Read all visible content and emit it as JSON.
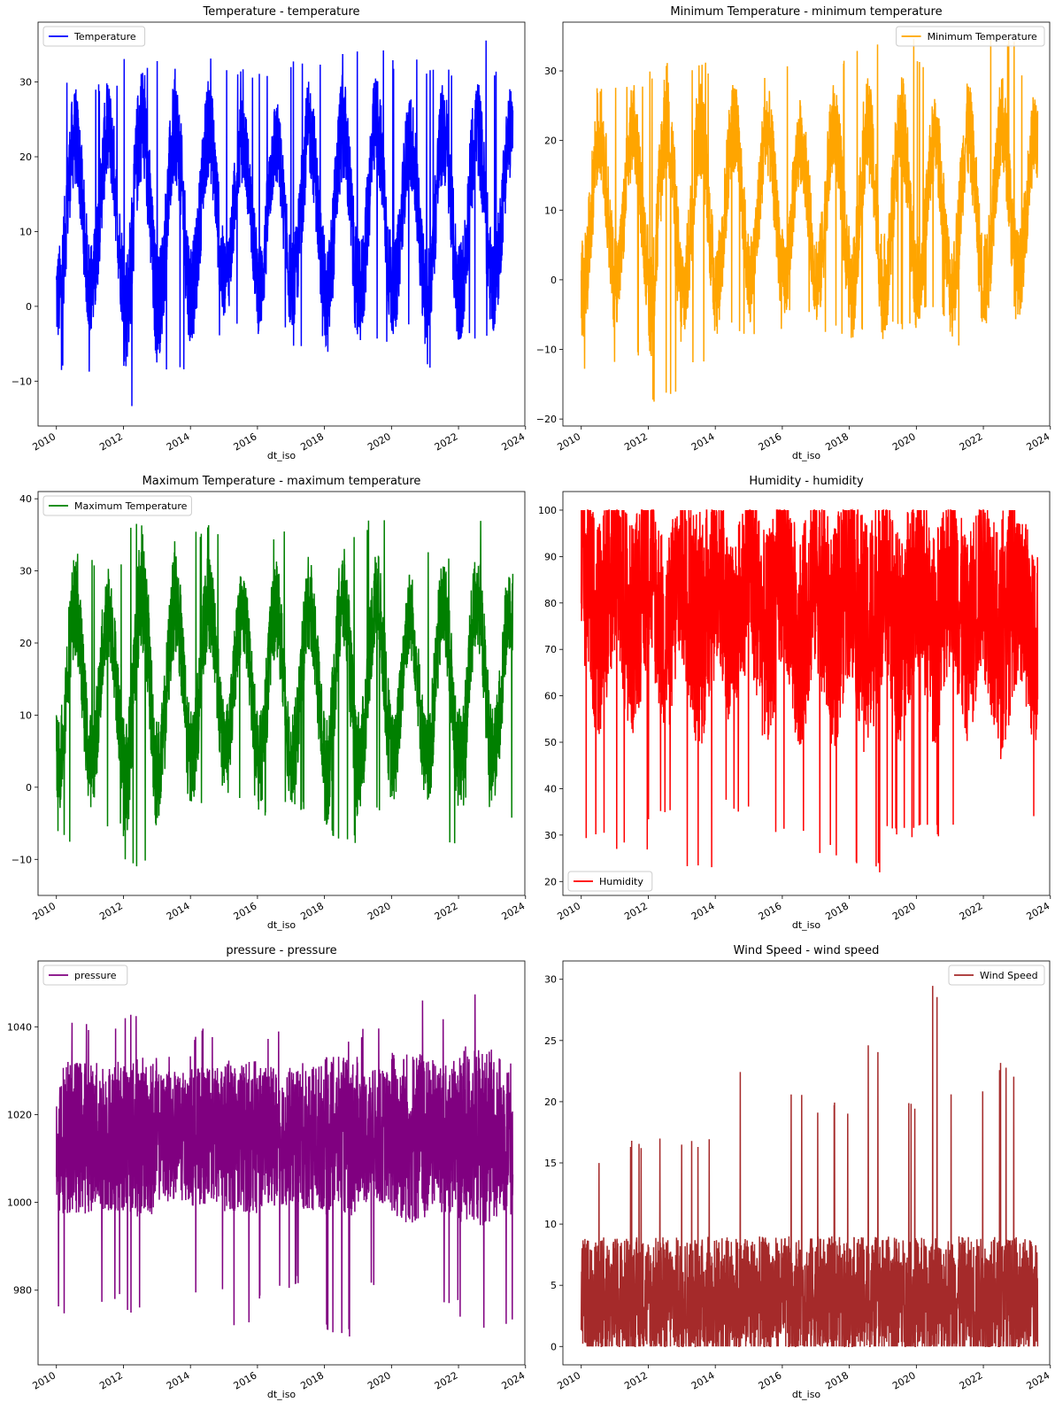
{
  "chart_data": [
    {
      "type": "line",
      "title": "Temperature - temperature",
      "xlabel": "dt_iso",
      "ylabel": "",
      "series": [
        {
          "name": "Temperature",
          "color": "#0000ff"
        }
      ],
      "x_range": [
        "2009-06-14",
        "2023-12-24"
      ],
      "xticks": [
        "2010",
        "2012",
        "2014",
        "2016",
        "2018",
        "2020",
        "2022",
        "2024"
      ],
      "ylim": [
        -16,
        38
      ],
      "yticks": [
        -10,
        0,
        10,
        20,
        30
      ],
      "envelope": {
        "min": -13.6,
        "max": 36.2
      },
      "yearly": {
        "2010": {
          "lo": -9,
          "mid": 12,
          "hi": 30.4
        },
        "2011": {
          "lo": -7.8,
          "mid": 13,
          "hi": 30.4
        },
        "2012": {
          "lo": -13.6,
          "mid": 12,
          "hi": 33.1
        },
        "2013": {
          "lo": -8.8,
          "mid": 12,
          "hi": 33.3
        },
        "2014": {
          "lo": -5.3,
          "mid": 13,
          "hi": 34.3
        },
        "2015": {
          "lo": -2.4,
          "mid": 13,
          "hi": 31.8
        },
        "2016": {
          "lo": -3.7,
          "mid": 12,
          "hi": 32.4
        },
        "2017": {
          "lo": -5.5,
          "mid": 13,
          "hi": 33.6
        },
        "2018": {
          "lo": -8.3,
          "mid": 12,
          "hi": 35.2
        },
        "2019": {
          "lo": -5.5,
          "mid": 13,
          "hi": 36.2
        },
        "2020": {
          "lo": -3.7,
          "mid": 12,
          "hi": 33.4
        },
        "2021": {
          "lo": -8.8,
          "mid": 12,
          "hi": 32.6
        },
        "2022": {
          "lo": -4.4,
          "mid": 13,
          "hi": 36.1
        },
        "2023": {
          "lo": -5.2,
          "mid": 13,
          "hi": 32.5
        }
      },
      "legend_position": "upper left"
    },
    {
      "type": "line",
      "title": "Minimum Temperature - minimum temperature",
      "xlabel": "dt_iso",
      "ylabel": "",
      "series": [
        {
          "name": "Minimum Temperature",
          "color": "#ffa500"
        }
      ],
      "x_range": [
        "2009-06-14",
        "2023-12-24"
      ],
      "xticks": [
        "2010",
        "2012",
        "2014",
        "2016",
        "2018",
        "2020",
        "2022",
        "2024"
      ],
      "ylim": [
        -21,
        37
      ],
      "yticks": [
        -20,
        -10,
        0,
        10,
        20,
        30
      ],
      "envelope": {
        "min": -17.8,
        "max": 35
      },
      "yearly": {
        "2010": {
          "lo": -13.6,
          "mid": 10,
          "hi": 28
        },
        "2011": {
          "lo": -11,
          "mid": 11,
          "hi": 28.2
        },
        "2012": {
          "lo": -17.8,
          "mid": 10,
          "hi": 31.2
        },
        "2013": {
          "lo": -12,
          "mid": 10,
          "hi": 31.4
        },
        "2014": {
          "lo": -7.8,
          "mid": 11,
          "hi": 33.2
        },
        "2015": {
          "lo": -8.5,
          "mid": 11,
          "hi": 30.2
        },
        "2016": {
          "lo": -5.6,
          "mid": 10,
          "hi": 31.2
        },
        "2017": {
          "lo": -8.1,
          "mid": 11,
          "hi": 31.6
        },
        "2018": {
          "lo": -8.8,
          "mid": 10,
          "hi": 35
        },
        "2019": {
          "lo": -7.8,
          "mid": 11,
          "hi": 35
        },
        "2020": {
          "lo": -5.6,
          "mid": 10,
          "hi": 31.6
        },
        "2021": {
          "lo": -10.2,
          "mid": 10,
          "hi": 31.8
        },
        "2022": {
          "lo": -6.5,
          "mid": 11,
          "hi": 34.9
        },
        "2023": {
          "lo": -6,
          "mid": 11,
          "hi": 31.2
        }
      },
      "legend_position": "upper right"
    },
    {
      "type": "line",
      "title": "Maximum Temperature - maximum temperature",
      "xlabel": "dt_iso",
      "ylabel": "",
      "series": [
        {
          "name": "Maximum Temperature",
          "color": "#008000"
        }
      ],
      "x_range": [
        "2009-06-14",
        "2023-12-24"
      ],
      "xticks": [
        "2010",
        "2012",
        "2014",
        "2016",
        "2018",
        "2020",
        "2022",
        "2024"
      ],
      "ylim": [
        -15,
        41
      ],
      "yticks": [
        -10,
        0,
        10,
        20,
        30,
        40
      ],
      "envelope": {
        "min": -12.3,
        "max": 38.3
      },
      "yearly": {
        "2010": {
          "lo": -8,
          "mid": 14,
          "hi": 33
        },
        "2011": {
          "lo": -6.2,
          "mid": 14,
          "hi": 32.3
        },
        "2012": {
          "lo": -12.3,
          "mid": 14,
          "hi": 36.7
        },
        "2013": {
          "lo": -7.2,
          "mid": 14,
          "hi": 35.5
        },
        "2014": {
          "lo": -2.5,
          "mid": 15,
          "hi": 36.6
        },
        "2015": {
          "lo": -1.5,
          "mid": 15,
          "hi": 33.9
        },
        "2016": {
          "lo": -4,
          "mid": 14,
          "hi": 35.5
        },
        "2017": {
          "lo": -4,
          "mid": 15,
          "hi": 35.2
        },
        "2018": {
          "lo": -8,
          "mid": 14,
          "hi": 36.2
        },
        "2019": {
          "lo": -4,
          "mid": 15,
          "hi": 37.3
        },
        "2020": {
          "lo": -2,
          "mid": 14,
          "hi": 35.1
        },
        "2021": {
          "lo": -7.8,
          "mid": 14,
          "hi": 33.1
        },
        "2022": {
          "lo": -3,
          "mid": 15,
          "hi": 38.3
        },
        "2023": {
          "lo": -4.4,
          "mid": 15,
          "hi": 34
        }
      },
      "legend_position": "upper left"
    },
    {
      "type": "line",
      "title": "Humidity - humidity",
      "xlabel": "dt_iso",
      "ylabel": "",
      "series": [
        {
          "name": "Humidity",
          "color": "#ff0000"
        }
      ],
      "x_range": [
        "2009-06-14",
        "2023-12-24"
      ],
      "xticks": [
        "2010",
        "2012",
        "2014",
        "2016",
        "2018",
        "2020",
        "2022",
        "2024"
      ],
      "ylim": [
        17,
        104
      ],
      "yticks": [
        20,
        30,
        40,
        50,
        60,
        70,
        80,
        90,
        100
      ],
      "envelope": {
        "min": 21,
        "max": 100
      },
      "yearly": {
        "2010": {
          "lo": 28,
          "mid": 82,
          "hi": 100
        },
        "2011": {
          "lo": 26,
          "mid": 82,
          "hi": 100
        },
        "2012": {
          "lo": 33,
          "mid": 80,
          "hi": 100
        },
        "2013": {
          "lo": 23,
          "mid": 80,
          "hi": 100
        },
        "2014": {
          "lo": 35,
          "mid": 80,
          "hi": 100
        },
        "2015": {
          "lo": 28,
          "mid": 80,
          "hi": 100
        },
        "2016": {
          "lo": 29,
          "mid": 80,
          "hi": 100
        },
        "2017": {
          "lo": 25,
          "mid": 80,
          "hi": 100
        },
        "2018": {
          "lo": 21,
          "mid": 80,
          "hi": 100
        },
        "2019": {
          "lo": 29,
          "mid": 80,
          "hi": 100
        },
        "2020": {
          "lo": 29,
          "mid": 80,
          "hi": 100
        },
        "2021": {
          "lo": 31,
          "mid": 80,
          "hi": 100
        },
        "2022": {
          "lo": 26,
          "mid": 78,
          "hi": 100
        },
        "2023": {
          "lo": 31,
          "mid": 78,
          "hi": 97
        }
      },
      "legend_position": "lower left"
    },
    {
      "type": "line",
      "title": "pressure - pressure",
      "xlabel": "dt_iso",
      "ylabel": "",
      "series": [
        {
          "name": "pressure",
          "color": "#800080"
        }
      ],
      "x_range": [
        "2009-06-14",
        "2023-12-24"
      ],
      "xticks": [
        "2010",
        "2012",
        "2014",
        "2016",
        "2018",
        "2020",
        "2022",
        "2024"
      ],
      "ylim": [
        963,
        1055
      ],
      "yticks": [
        980,
        1000,
        1020,
        1040
      ],
      "envelope": {
        "min": 969,
        "max": 1050
      },
      "yearly": {
        "2010": {
          "lo": 974,
          "mid": 1015,
          "hi": 1042
        },
        "2011": {
          "lo": 976,
          "mid": 1015,
          "hi": 1042
        },
        "2012": {
          "lo": 973,
          "mid": 1015,
          "hi": 1043
        },
        "2013": {
          "lo": 978,
          "mid": 1015,
          "hi": 1035
        },
        "2014": {
          "lo": 979,
          "mid": 1015,
          "hi": 1040
        },
        "2015": {
          "lo": 972,
          "mid": 1015,
          "hi": 1039
        },
        "2016": {
          "lo": 978,
          "mid": 1015,
          "hi": 1039
        },
        "2017": {
          "lo": 980,
          "mid": 1015,
          "hi": 1045
        },
        "2018": {
          "lo": 969,
          "mid": 1015,
          "hi": 1039
        },
        "2019": {
          "lo": 980,
          "mid": 1015,
          "hi": 1040
        },
        "2020": {
          "lo": 969,
          "mid": 1015,
          "hi": 1047
        },
        "2021": {
          "lo": 977,
          "mid": 1015,
          "hi": 1044
        },
        "2022": {
          "lo": 971,
          "mid": 1015,
          "hi": 1050
        },
        "2023": {
          "lo": 972,
          "mid": 1015,
          "hi": 1042
        }
      },
      "legend_position": "upper left"
    },
    {
      "type": "line",
      "title": "Wind Speed - wind speed",
      "xlabel": "dt_iso",
      "ylabel": "",
      "series": [
        {
          "name": "Wind Speed",
          "color": "#a52a2a"
        }
      ],
      "x_range": [
        "2009-06-14",
        "2023-12-24"
      ],
      "xticks": [
        "2010",
        "2012",
        "2014",
        "2016",
        "2018",
        "2020",
        "2022",
        "2024"
      ],
      "ylim": [
        -1.5,
        31.5
      ],
      "yticks": [
        0,
        5,
        10,
        15,
        20,
        25,
        30
      ],
      "envelope": {
        "min": 0,
        "max": 30
      },
      "yearly": {
        "2010": {
          "lo": 0,
          "mid": 4,
          "hi": 15
        },
        "2011": {
          "lo": 0,
          "mid": 4,
          "hi": 17
        },
        "2012": {
          "lo": 0,
          "mid": 4,
          "hi": 17
        },
        "2013": {
          "lo": 0,
          "mid": 4,
          "hi": 17
        },
        "2014": {
          "lo": 0,
          "mid": 4,
          "hi": 23
        },
        "2015": {
          "lo": 0,
          "mid": 4,
          "hi": 20
        },
        "2016": {
          "lo": 0,
          "mid": 4,
          "hi": 21
        },
        "2017": {
          "lo": 0,
          "mid": 4,
          "hi": 20
        },
        "2018": {
          "lo": 0,
          "mid": 4,
          "hi": 25.3
        },
        "2019": {
          "lo": 0,
          "mid": 4,
          "hi": 20
        },
        "2020": {
          "lo": 0,
          "mid": 4,
          "hi": 30
        },
        "2021": {
          "lo": 0,
          "mid": 4,
          "hi": 21
        },
        "2022": {
          "lo": 0,
          "mid": 4,
          "hi": 23.2
        },
        "2023": {
          "lo": 0,
          "mid": 4,
          "hi": 22
        }
      },
      "legend_position": "upper right"
    }
  ]
}
